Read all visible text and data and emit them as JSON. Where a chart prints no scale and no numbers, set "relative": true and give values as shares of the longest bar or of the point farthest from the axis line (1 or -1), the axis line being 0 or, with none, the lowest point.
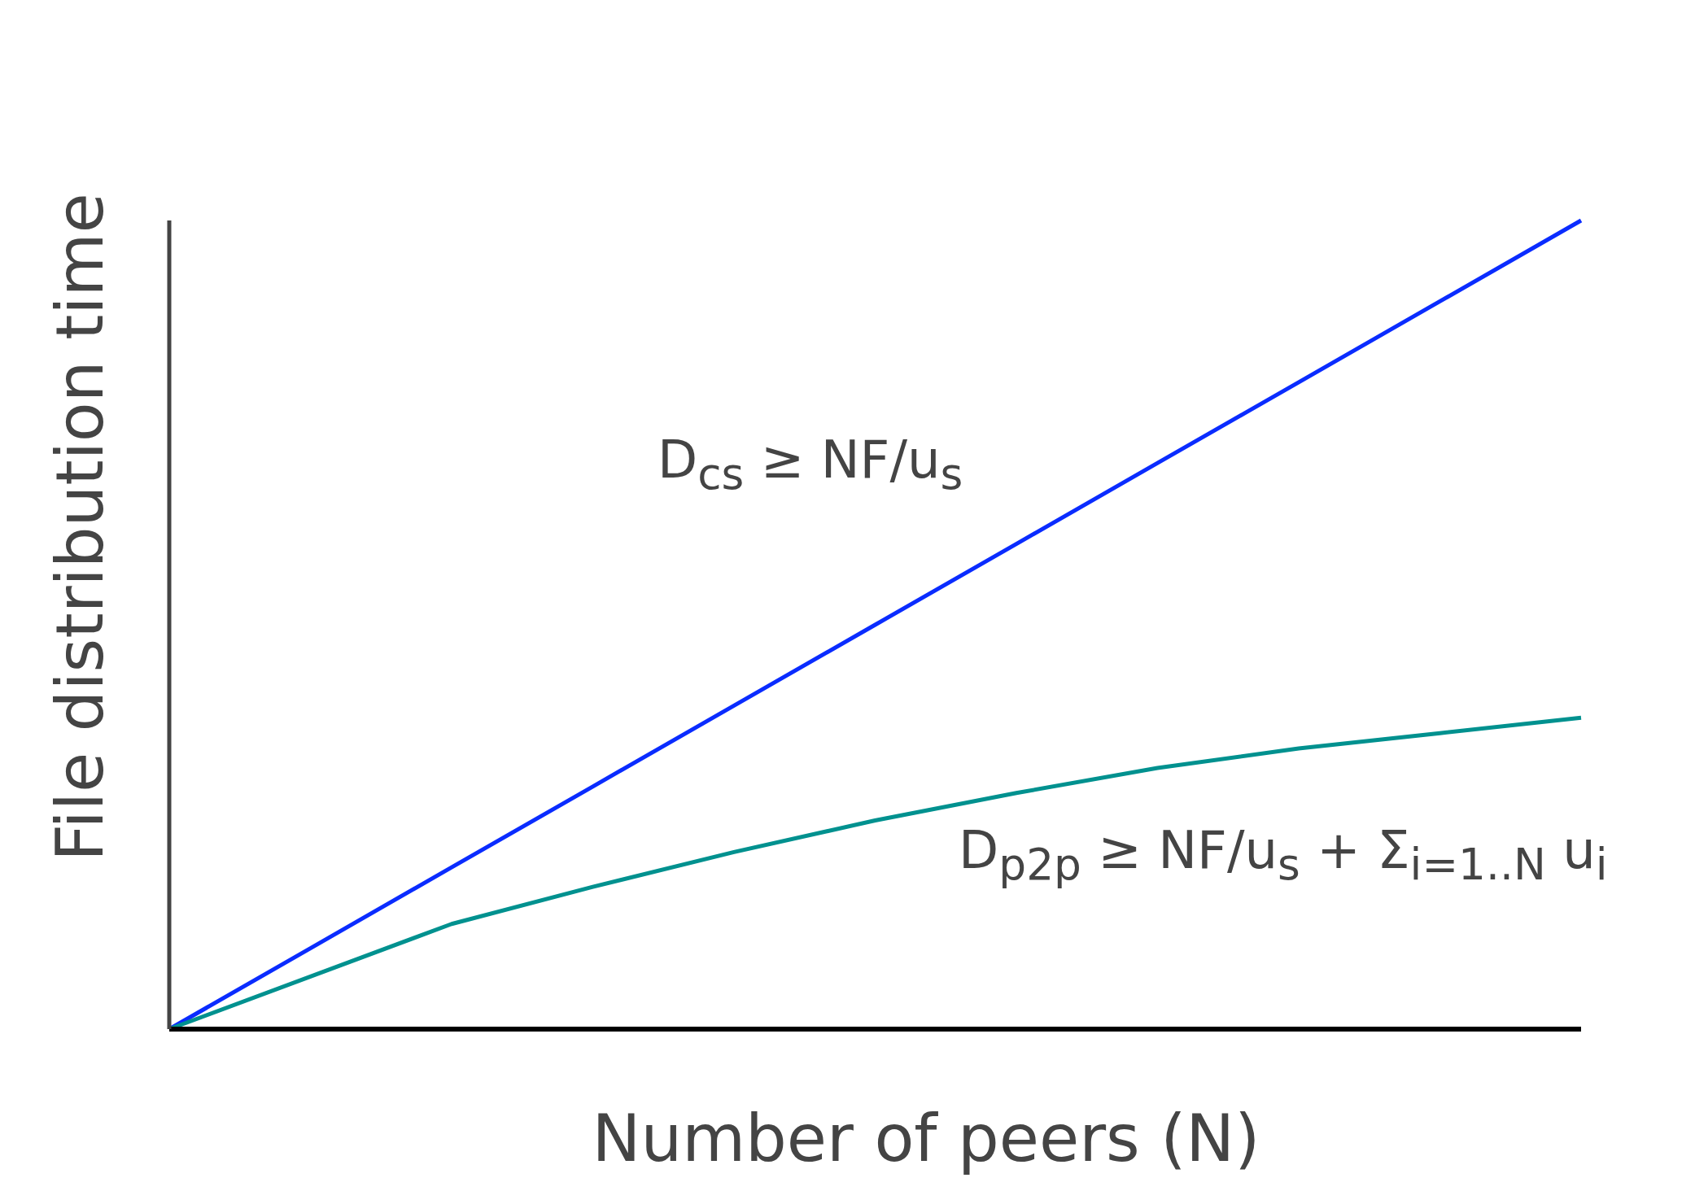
{
  "chart_data": {
    "type": "line",
    "relative": true,
    "xlabel": "Number of peers (N)",
    "ylabel": "File distribution time",
    "categories": [
      null,
      null,
      null,
      null,
      null,
      null,
      null,
      null,
      null,
      null,
      null
    ],
    "series": [
      {
        "color": "#0a2cff",
        "values": [
          0,
          0.1,
          0.2,
          0.3,
          0.4,
          0.5,
          0.6,
          0.7,
          0.8,
          0.9,
          1.0
        ]
      },
      {
        "color": "#00918f",
        "values": [
          0,
          0.065,
          0.13,
          0.176,
          0.219,
          0.258,
          0.292,
          0.323,
          0.347,
          0.366,
          0.385
        ]
      }
    ],
    "annotations": [
      "D$_{cs}$ ≥ NF/u$_{s}$",
      "D$_{p2p}$ ≥ NF/u$_{s}$ + Σ$_{i=1..N}$ u$_{i}$"
    ],
    "grid": false,
    "legend": false,
    "marker": "none",
    "line_style": "solid"
  }
}
